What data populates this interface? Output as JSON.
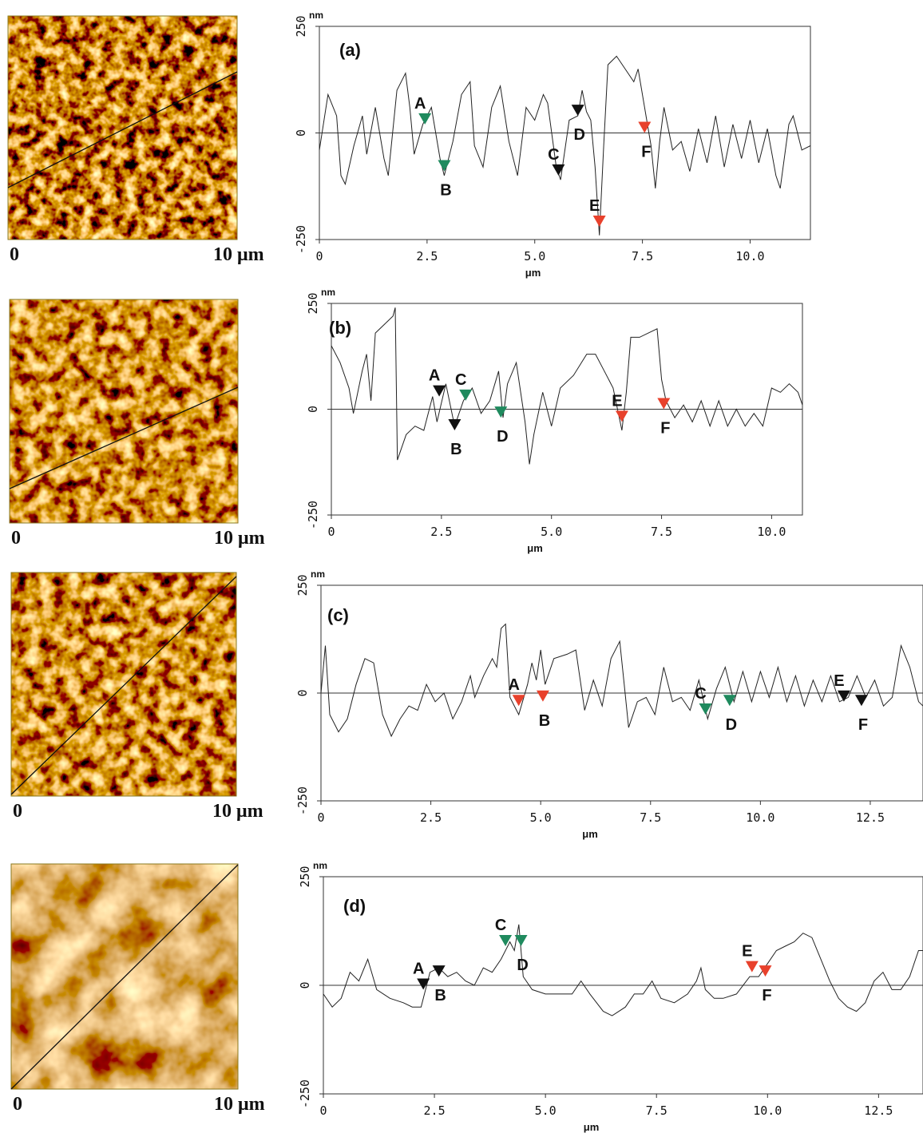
{
  "chart_data": [
    {
      "type": "line",
      "title": "(a)",
      "ylabel": "nm",
      "xlabel": "μm",
      "image_labels": [
        "0",
        "10 μm"
      ],
      "xlim": [
        0,
        11.4
      ],
      "ylim": [
        -250,
        250
      ],
      "xticks": [
        0,
        2.5,
        {
          "value": 5,
          "label": "5.0"
        },
        7.5,
        {
          "value": 10,
          "label": "10.0"
        }
      ],
      "yticks": [
        -250,
        0,
        250
      ],
      "zero_line": true,
      "color": "#222222",
      "x": [
        0,
        0.2,
        0.4,
        0.5,
        0.6,
        0.8,
        1.0,
        1.1,
        1.3,
        1.5,
        1.6,
        1.8,
        2.0,
        2.1,
        2.2,
        2.4,
        2.6,
        2.8,
        2.9,
        3.1,
        3.3,
        3.5,
        3.6,
        3.8,
        4.0,
        4.2,
        4.4,
        4.6,
        4.8,
        5.0,
        5.2,
        5.3,
        5.5,
        5.6,
        5.8,
        6.0,
        6.1,
        6.2,
        6.3,
        6.4,
        6.5,
        6.6,
        6.7,
        6.9,
        7.1,
        7.3,
        7.4,
        7.6,
        7.7,
        7.8,
        7.9,
        8.0,
        8.2,
        8.4,
        8.6,
        8.8,
        9.0,
        9.2,
        9.4,
        9.6,
        9.8,
        10.0,
        10.2,
        10.4,
        10.6,
        10.7,
        10.9,
        11.0,
        11.2,
        11.4
      ],
      "values": [
        -40,
        90,
        40,
        -100,
        -120,
        -30,
        40,
        -50,
        60,
        -60,
        -100,
        100,
        140,
        60,
        -50,
        20,
        60,
        -60,
        -100,
        -20,
        90,
        120,
        -30,
        -80,
        60,
        110,
        -20,
        -100,
        60,
        30,
        90,
        70,
        -80,
        -110,
        30,
        40,
        100,
        50,
        30,
        -80,
        -240,
        -30,
        160,
        180,
        150,
        120,
        150,
        30,
        -30,
        -130,
        -20,
        60,
        -40,
        -20,
        -90,
        10,
        -70,
        40,
        -80,
        20,
        -60,
        30,
        -70,
        10,
        -100,
        -130,
        20,
        40,
        -40,
        -30
      ],
      "markers": [
        {
          "label": "A",
          "x": 2.45,
          "y": 20,
          "color": "#1f8a5e"
        },
        {
          "label": "B",
          "x": 2.9,
          "y": -90,
          "color": "#1f8a5e"
        },
        {
          "label": "C",
          "x": 5.55,
          "y": -100,
          "color": "#111111"
        },
        {
          "label": "D",
          "x": 6.0,
          "y": 40,
          "color": "#111111"
        },
        {
          "label": "E",
          "x": 6.5,
          "y": -220,
          "color": "#e8412c"
        },
        {
          "label": "F",
          "x": 7.55,
          "y": 0,
          "color": "#e8412c"
        }
      ]
    },
    {
      "type": "line",
      "title": "(b)",
      "ylabel": "nm",
      "xlabel": "μm",
      "image_labels": [
        "0",
        "10 μm"
      ],
      "xlim": [
        0,
        10.7
      ],
      "ylim": [
        -250,
        250
      ],
      "xticks": [
        0,
        2.5,
        {
          "value": 5,
          "label": "5.0"
        },
        7.5,
        {
          "value": 10,
          "label": "10.0"
        }
      ],
      "yticks": [
        -250,
        0,
        250
      ],
      "zero_line": true,
      "color": "#222222",
      "x": [
        0,
        0.2,
        0.4,
        0.5,
        0.7,
        0.8,
        0.9,
        1.0,
        1.2,
        1.4,
        1.45,
        1.5,
        1.7,
        1.9,
        2.1,
        2.3,
        2.4,
        2.6,
        2.8,
        3.0,
        3.2,
        3.4,
        3.6,
        3.8,
        3.9,
        4.0,
        4.2,
        4.4,
        4.5,
        4.6,
        4.8,
        5.0,
        5.2,
        5.5,
        5.8,
        6.0,
        6.2,
        6.4,
        6.6,
        6.7,
        6.8,
        7.0,
        7.2,
        7.4,
        7.5,
        7.6,
        7.8,
        8.0,
        8.2,
        8.4,
        8.6,
        8.8,
        9.0,
        9.2,
        9.4,
        9.6,
        9.8,
        10.0,
        10.2,
        10.4,
        10.6,
        10.7
      ],
      "values": [
        150,
        110,
        50,
        -10,
        90,
        130,
        20,
        180,
        200,
        220,
        240,
        -120,
        -60,
        -40,
        -50,
        30,
        -30,
        60,
        -40,
        20,
        50,
        -10,
        20,
        90,
        -20,
        60,
        110,
        -30,
        -130,
        -60,
        40,
        -40,
        50,
        80,
        130,
        130,
        90,
        50,
        -50,
        40,
        170,
        170,
        180,
        190,
        70,
        20,
        -20,
        10,
        -30,
        20,
        -40,
        20,
        -40,
        0,
        -40,
        -10,
        -40,
        50,
        40,
        60,
        40,
        10
      ],
      "markers": [
        {
          "label": "A",
          "x": 2.45,
          "y": 30,
          "color": "#111111"
        },
        {
          "label": "B",
          "x": 2.8,
          "y": -50,
          "color": "#111111"
        },
        {
          "label": "C",
          "x": 3.05,
          "y": 20,
          "color": "#1f8a5e"
        },
        {
          "label": "D",
          "x": 3.85,
          "y": -20,
          "color": "#1f8a5e"
        },
        {
          "label": "E",
          "x": 6.6,
          "y": -30,
          "color": "#e8412c"
        },
        {
          "label": "F",
          "x": 7.55,
          "y": 0,
          "color": "#e8412c"
        }
      ]
    },
    {
      "type": "line",
      "title": "(c)",
      "ylabel": "nm",
      "xlabel": "μm",
      "image_labels": [
        "0",
        "10 μm"
      ],
      "xlim": [
        0,
        13.7
      ],
      "ylim": [
        -250,
        250
      ],
      "xticks": [
        0,
        2.5,
        {
          "value": 5,
          "label": "5.0"
        },
        7.5,
        {
          "value": 10,
          "label": "10.0"
        },
        12.5
      ],
      "yticks": [
        -250,
        0,
        250
      ],
      "zero_line": true,
      "color": "#222222",
      "x": [
        0,
        0.1,
        0.2,
        0.4,
        0.6,
        0.8,
        1.0,
        1.2,
        1.4,
        1.6,
        1.8,
        2.0,
        2.2,
        2.4,
        2.6,
        2.8,
        3.0,
        3.2,
        3.4,
        3.5,
        3.7,
        3.9,
        4.0,
        4.1,
        4.2,
        4.3,
        4.5,
        4.7,
        4.8,
        4.9,
        5.0,
        5.1,
        5.3,
        5.6,
        5.8,
        6.0,
        6.2,
        6.4,
        6.6,
        6.8,
        6.9,
        7.0,
        7.2,
        7.4,
        7.6,
        7.8,
        8.0,
        8.2,
        8.4,
        8.6,
        8.8,
        9.0,
        9.2,
        9.4,
        9.6,
        9.8,
        10.0,
        10.2,
        10.4,
        10.6,
        10.8,
        11.0,
        11.2,
        11.4,
        11.6,
        11.8,
        12.0,
        12.2,
        12.4,
        12.6,
        12.8,
        13.0,
        13.2,
        13.4,
        13.6,
        13.7
      ],
      "values": [
        0,
        110,
        -50,
        -90,
        -60,
        20,
        80,
        70,
        -50,
        -100,
        -60,
        -30,
        -40,
        20,
        -20,
        0,
        -60,
        -20,
        40,
        -10,
        40,
        80,
        60,
        150,
        160,
        -10,
        -50,
        20,
        70,
        30,
        100,
        20,
        80,
        90,
        100,
        -40,
        30,
        -30,
        80,
        120,
        20,
        -80,
        -20,
        -10,
        -50,
        60,
        -20,
        -10,
        -40,
        30,
        -60,
        10,
        60,
        -20,
        50,
        -20,
        50,
        -10,
        60,
        -20,
        40,
        -30,
        30,
        -20,
        40,
        -20,
        -10,
        40,
        -10,
        30,
        -30,
        -10,
        110,
        60,
        -20,
        -30
      ],
      "markers": [
        {
          "label": "A",
          "x": 4.5,
          "y": -30,
          "color": "#e8412c"
        },
        {
          "label": "B",
          "x": 5.05,
          "y": -20,
          "color": "#e8412c"
        },
        {
          "label": "C",
          "x": 8.75,
          "y": -50,
          "color": "#1f8a5e"
        },
        {
          "label": "D",
          "x": 9.3,
          "y": -30,
          "color": "#1f8a5e"
        },
        {
          "label": "E",
          "x": 11.9,
          "y": -20,
          "color": "#111111"
        },
        {
          "label": "F",
          "x": 12.3,
          "y": -30,
          "color": "#111111"
        }
      ]
    },
    {
      "type": "line",
      "title": "(d)",
      "ylabel": "nm",
      "xlabel": "μm",
      "image_labels": [
        "0",
        "10 μm"
      ],
      "xlim": [
        0,
        13.5
      ],
      "ylim": [
        -250,
        250
      ],
      "xticks": [
        0,
        2.5,
        {
          "value": 5,
          "label": "5.0"
        },
        7.5,
        {
          "value": 10,
          "label": "10.0"
        },
        12.5
      ],
      "yticks": [
        -250,
        0,
        250
      ],
      "zero_line": true,
      "color": "#222222",
      "x": [
        0,
        0.2,
        0.4,
        0.6,
        0.8,
        1.0,
        1.2,
        1.5,
        1.8,
        2.0,
        2.2,
        2.4,
        2.6,
        2.8,
        3.0,
        3.2,
        3.4,
        3.6,
        3.8,
        4.0,
        4.2,
        4.3,
        4.4,
        4.5,
        4.7,
        5.0,
        5.3,
        5.6,
        5.8,
        6.0,
        6.3,
        6.5,
        6.8,
        7.0,
        7.2,
        7.4,
        7.6,
        7.9,
        8.2,
        8.4,
        8.5,
        8.6,
        8.8,
        9.0,
        9.3,
        9.6,
        9.8,
        10.0,
        10.2,
        10.4,
        10.6,
        10.8,
        11.0,
        11.2,
        11.4,
        11.6,
        11.8,
        12.0,
        12.2,
        12.4,
        12.6,
        12.8,
        13.0,
        13.2,
        13.4,
        13.5
      ],
      "values": [
        -20,
        -50,
        -30,
        30,
        10,
        60,
        -10,
        -30,
        -40,
        -50,
        -50,
        30,
        40,
        20,
        30,
        10,
        0,
        40,
        30,
        60,
        100,
        80,
        140,
        20,
        -10,
        -20,
        -20,
        -20,
        10,
        -20,
        -60,
        -70,
        -50,
        -20,
        -20,
        10,
        -30,
        -40,
        -20,
        10,
        40,
        -10,
        -30,
        -30,
        -20,
        20,
        20,
        50,
        80,
        90,
        100,
        120,
        110,
        60,
        10,
        -30,
        -50,
        -60,
        -40,
        10,
        30,
        -10,
        -10,
        20,
        80,
        80
      ],
      "markers": [
        {
          "label": "A",
          "x": 2.25,
          "y": -10,
          "color": "#111111"
        },
        {
          "label": "B",
          "x": 2.6,
          "y": 20,
          "color": "#111111"
        },
        {
          "label": "C",
          "x": 4.1,
          "y": 90,
          "color": "#1f8a5e"
        },
        {
          "label": "D",
          "x": 4.45,
          "y": 90,
          "color": "#1f8a5e"
        },
        {
          "label": "E",
          "x": 9.65,
          "y": 30,
          "color": "#e8412c"
        },
        {
          "label": "F",
          "x": 9.95,
          "y": 20,
          "color": "#e8412c"
        }
      ]
    }
  ]
}
